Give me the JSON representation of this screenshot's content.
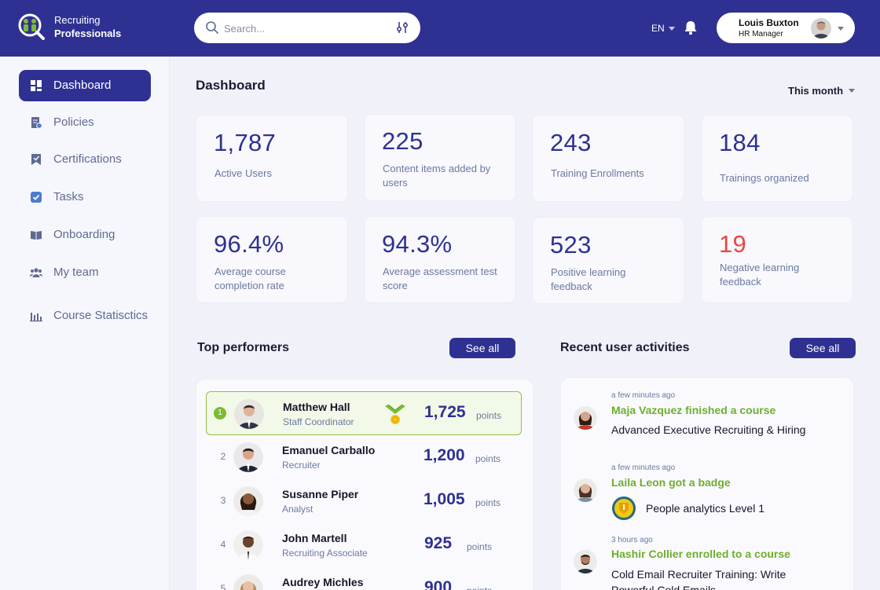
{
  "brand": {
    "line1": "Recruiting",
    "line2": "Professionals"
  },
  "search": {
    "placeholder": "Search..."
  },
  "header": {
    "language": "EN"
  },
  "user": {
    "name": "Louis Buxton",
    "role": "HR Manager"
  },
  "sidebar": {
    "items": [
      {
        "label": "Dashboard",
        "icon": "dashboard-icon",
        "active": true
      },
      {
        "label": "Policies",
        "icon": "policy-icon"
      },
      {
        "label": "Certifications",
        "icon": "certificate-icon"
      },
      {
        "label": "Tasks",
        "icon": "task-icon"
      },
      {
        "label": "Onboarding",
        "icon": "book-icon"
      },
      {
        "label": "My team",
        "icon": "team-icon"
      },
      {
        "label": "Course Statisctics",
        "icon": "bar-chart-icon"
      }
    ]
  },
  "main": {
    "title": "Dashboard",
    "period": "This month",
    "stats": [
      {
        "value": "1,787",
        "label": "Active Users"
      },
      {
        "value": "225",
        "label": "Content items added by users"
      },
      {
        "value": "243",
        "label": "Training Enrollments"
      },
      {
        "value": "184",
        "label": "Trainings organized"
      },
      {
        "value": "96.4%",
        "label": "Average course completion rate"
      },
      {
        "value": "94.3%",
        "label": "Average assessment test score"
      },
      {
        "value": "523",
        "label": "Positive learning feedback"
      },
      {
        "value": "19",
        "label": "Negative learning feedback",
        "color": "#ef4444"
      }
    ]
  },
  "top_performers": {
    "title": "Top performers",
    "see_all": "See all",
    "rows": [
      {
        "rank": "1",
        "name": "Matthew Hall",
        "role": "Staff Coordinator",
        "points": "1,725",
        "unit": "points"
      },
      {
        "rank": "2",
        "name": "Emanuel Carballo",
        "role": "Recruiter",
        "points": "1,200",
        "unit": "points"
      },
      {
        "rank": "3",
        "name": "Susanne Piper",
        "role": "Analyst",
        "points": "1,005",
        "unit": "points"
      },
      {
        "rank": "4",
        "name": "John Martell",
        "role": "Recruiting Associate",
        "points": "925",
        "unit": "points"
      },
      {
        "rank": "5",
        "name": "Audrey Michles",
        "role": "",
        "points": "900",
        "unit": "points"
      }
    ]
  },
  "activities": {
    "title": "Recent user activities",
    "see_all": "See all",
    "items": [
      {
        "time": "a few minutes ago",
        "title": "Maja Vazquez finished a course",
        "desc": "Advanced Executive Recruiting & Hiring"
      },
      {
        "time": "a few minutes ago",
        "title": "Laila Leon got a badge",
        "desc": "People analytics Level 1"
      },
      {
        "time": "3 hours ago",
        "title": "Hashir Collier enrolled to a course",
        "desc": "Cold Email Recruiter Training: Write Powerful Cold Emails"
      }
    ]
  },
  "colors": {
    "primary": "#2e3192",
    "success": "#6fae2c",
    "danger": "#ef4444"
  }
}
